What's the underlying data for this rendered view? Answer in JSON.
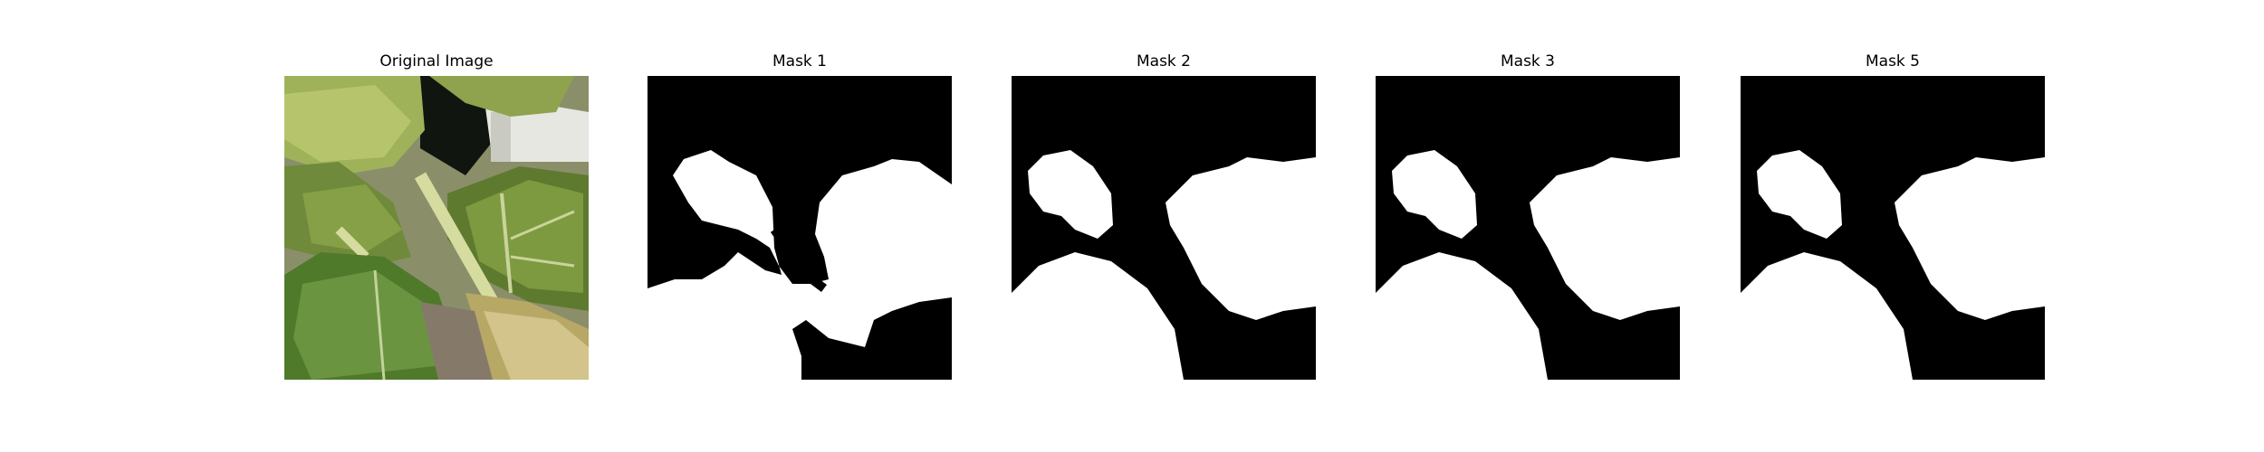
{
  "panels": [
    {
      "title": "Original Image"
    },
    {
      "title": "Mask 1"
    },
    {
      "title": "Mask 2"
    },
    {
      "title": "Mask 3"
    },
    {
      "title": "Mask 5"
    }
  ]
}
